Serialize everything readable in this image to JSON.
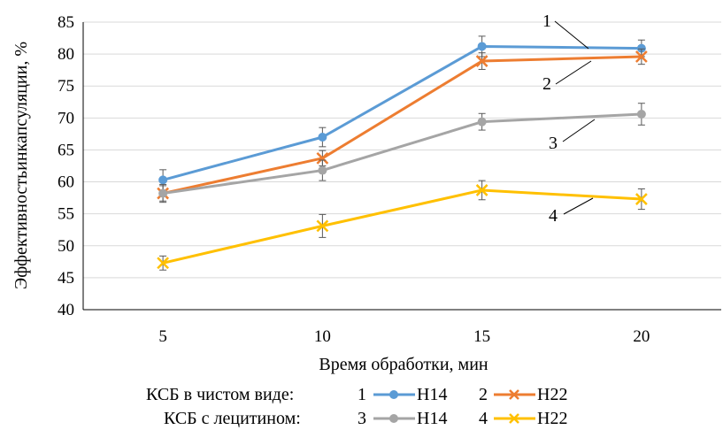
{
  "chart_data": {
    "type": "line",
    "x": [
      5,
      10,
      15,
      20
    ],
    "xlabel": "Время обработки, мин",
    "ylabel": "Эффективностьинкапсуляции, %",
    "ylim": [
      40,
      85
    ],
    "yticks": [
      40,
      45,
      50,
      55,
      60,
      65,
      70,
      75,
      80,
      85
    ],
    "grid": "horizontal",
    "legend_position": "bottom",
    "series": [
      {
        "id": "1",
        "name": "Н14",
        "group": "КСБ в чистом виде:",
        "marker": "circle",
        "color": "#5B9BD5",
        "values": [
          60.3,
          67.0,
          81.2,
          80.9
        ],
        "errors": [
          1.6,
          1.5,
          1.6,
          1.3
        ]
      },
      {
        "id": "2",
        "name": "Н22",
        "group": "КСБ в чистом виде:",
        "marker": "x",
        "color": "#ED7D31",
        "values": [
          58.2,
          63.7,
          78.9,
          79.6
        ],
        "errors": [
          1.4,
          1.2,
          1.3,
          1.2
        ]
      },
      {
        "id": "3",
        "name": "Н14",
        "group": "КСБ с лецитином:",
        "marker": "circle",
        "color": "#A5A5A5",
        "values": [
          58.2,
          61.8,
          69.4,
          70.6
        ],
        "errors": [
          1.2,
          1.6,
          1.3,
          1.7
        ]
      },
      {
        "id": "4",
        "name": "Н22",
        "group": "КСБ с лецитином:",
        "marker": "x",
        "color": "#FFC000",
        "values": [
          47.3,
          53.1,
          58.7,
          57.3
        ],
        "errors": [
          1.1,
          1.8,
          1.5,
          1.6
        ]
      }
    ]
  },
  "curve_labels": [
    "1",
    "2",
    "3",
    "4"
  ],
  "legend": {
    "row1_title": "КСБ в чистом виде:",
    "row2_title": "КСБ с лецитином:",
    "items": [
      {
        "num": "1",
        "label": "Н14"
      },
      {
        "num": "2",
        "label": "Н22"
      },
      {
        "num": "3",
        "label": "Н14"
      },
      {
        "num": "4",
        "label": "Н22"
      }
    ]
  }
}
